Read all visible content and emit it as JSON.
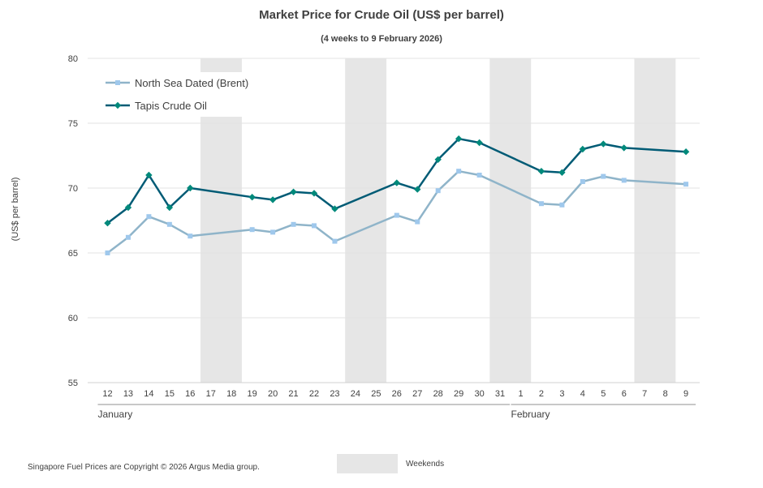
{
  "chart_data": {
    "type": "line",
    "title": "Market Price for Crude Oil (US$ per barrel)",
    "subtitle": "(4 weeks to 9 February 2026)",
    "ylabel": "(US$ per barrel)",
    "xlabel": "",
    "ylim": [
      55,
      80
    ],
    "yticks": [
      55,
      60,
      65,
      70,
      75,
      80
    ],
    "grid": true,
    "legend_position": "top-left",
    "categories": [
      "12",
      "13",
      "14",
      "15",
      "16",
      "17",
      "18",
      "19",
      "20",
      "21",
      "22",
      "23",
      "24",
      "25",
      "26",
      "27",
      "28",
      "29",
      "30",
      "31",
      "1",
      "2",
      "3",
      "4",
      "5",
      "6",
      "7",
      "8",
      "9"
    ],
    "months": [
      {
        "label": "January",
        "first": 0,
        "last": 19
      },
      {
        "label": "February",
        "first": 20,
        "last": 28
      }
    ],
    "weekend_label": "Weekends",
    "weekends": [
      [
        "17",
        "18"
      ],
      [
        "24",
        "25"
      ],
      [
        "31",
        "1"
      ],
      [
        "7",
        "8"
      ]
    ],
    "series": [
      {
        "name": "North Sea Dated (Brent)",
        "color": "#8fb4c9",
        "marker_color": "#9fc8ec",
        "marker": "square",
        "values": [
          65.0,
          66.2,
          67.8,
          67.2,
          66.3,
          null,
          null,
          66.8,
          66.6,
          67.2,
          67.1,
          65.9,
          null,
          null,
          67.9,
          67.4,
          69.8,
          71.3,
          71.0,
          null,
          null,
          68.8,
          68.7,
          70.5,
          70.9,
          70.6,
          null,
          null,
          70.3
        ]
      },
      {
        "name": "Tapis Crude Oil",
        "color": "#005b75",
        "marker_color": "#00897b",
        "marker": "diamond",
        "values": [
          67.3,
          68.5,
          71.0,
          68.5,
          70.0,
          null,
          null,
          69.3,
          69.1,
          69.7,
          69.6,
          68.4,
          null,
          null,
          70.4,
          69.9,
          72.2,
          73.8,
          73.5,
          null,
          null,
          71.3,
          71.2,
          73.0,
          73.4,
          73.1,
          null,
          null,
          72.8
        ]
      }
    ]
  },
  "footer": {
    "copyright": "Singapore Fuel Prices are Copyright © 2026 Argus Media group."
  }
}
